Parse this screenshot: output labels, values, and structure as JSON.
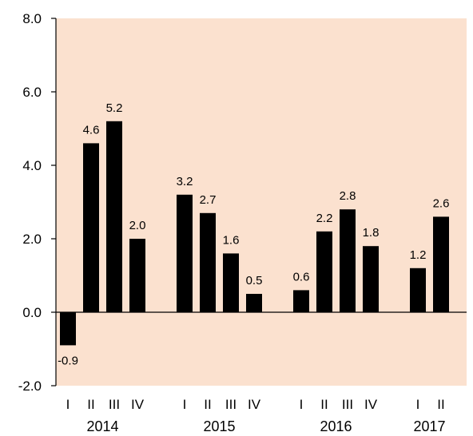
{
  "chart_data": {
    "type": "bar",
    "title": "",
    "xlabel": "",
    "ylabel": "",
    "ylim": [
      -2,
      8
    ],
    "yticks": [
      "8.0",
      "6.0",
      "4.0",
      "2.0",
      "0.0",
      "-2.0"
    ],
    "ytick_values": [
      8,
      6,
      4,
      2,
      0,
      -2
    ],
    "grid": false,
    "legend": "none",
    "colors": {
      "plot_background": "#fbe1cf",
      "bar": "#000000"
    },
    "groups": [
      {
        "year": "2014",
        "quarters": [
          "I",
          "II",
          "III",
          "IV"
        ],
        "values": [
          -0.9,
          4.6,
          5.2,
          2.0
        ],
        "labels": [
          "-0.9",
          "4.6",
          "5.2",
          "2.0"
        ]
      },
      {
        "year": "2015",
        "quarters": [
          "I",
          "II",
          "III",
          "IV"
        ],
        "values": [
          3.2,
          2.7,
          1.6,
          0.5
        ],
        "labels": [
          "3.2",
          "2.7",
          "1.6",
          "0.5"
        ]
      },
      {
        "year": "2016",
        "quarters": [
          "I",
          "II",
          "III",
          "IV"
        ],
        "values": [
          0.6,
          2.2,
          2.8,
          1.8
        ],
        "labels": [
          "0.6",
          "2.2",
          "2.8",
          "1.8"
        ]
      },
      {
        "year": "2017",
        "quarters": [
          "I",
          "II"
        ],
        "values": [
          1.2,
          2.6
        ],
        "labels": [
          "1.2",
          "2.6"
        ]
      }
    ]
  }
}
